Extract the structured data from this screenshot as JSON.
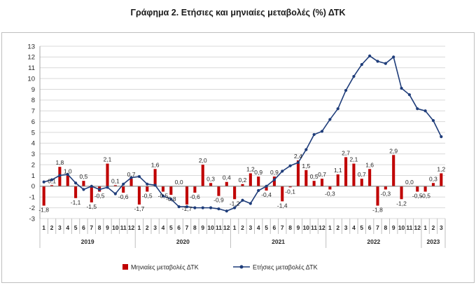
{
  "chart_data": {
    "type": "bar",
    "title": "Γράφημα 2. Ετήσιες και μηνιαίες μεταβολές (%) ΔΤΚ",
    "xlabel": "",
    "ylabel": "",
    "ylim": [
      -3,
      13
    ],
    "yticks": [
      -3,
      -2,
      -1,
      0,
      1,
      2,
      3,
      4,
      5,
      6,
      7,
      8,
      9,
      10,
      11,
      12,
      13
    ],
    "grid": true,
    "legend": "bottom",
    "periods": [
      {
        "year": "2019",
        "months": [
          "1",
          "2",
          "3",
          "4",
          "5",
          "6",
          "7",
          "8",
          "9",
          "10",
          "11",
          "12"
        ]
      },
      {
        "year": "2020",
        "months": [
          "1",
          "2",
          "3",
          "4",
          "5",
          "6",
          "7",
          "8",
          "9",
          "10",
          "11",
          "12"
        ]
      },
      {
        "year": "2021",
        "months": [
          "1",
          "2",
          "3",
          "4",
          "5",
          "6",
          "7",
          "8",
          "9",
          "10",
          "11",
          "12"
        ]
      },
      {
        "year": "2022",
        "months": [
          "1",
          "2",
          "3",
          "4",
          "5",
          "6",
          "7",
          "8",
          "9",
          "10",
          "11",
          "12"
        ]
      },
      {
        "year": "2023",
        "months": [
          "1",
          "2",
          "3"
        ]
      }
    ],
    "series": [
      {
        "name": "Μηνιαίες μεταβολές ΔΤΚ",
        "type": "bar",
        "color": "#C00000",
        "data_labels": true,
        "values": [
          -1.8,
          0.1,
          1.8,
          1.0,
          -1.1,
          0.5,
          -1.5,
          -0.5,
          2.1,
          0.1,
          -0.6,
          0.7,
          -1.7,
          -0.5,
          1.6,
          -0.5,
          -0.8,
          0.0,
          -1.7,
          -0.6,
          2.0,
          0.3,
          -0.9,
          0.4,
          -1.2,
          0.2,
          1.2,
          0.9,
          -0.4,
          0.9,
          -1.4,
          -0.1,
          2.4,
          1.5,
          0.5,
          0.7,
          -0.3,
          1.1,
          2.7,
          2.1,
          0.7,
          1.6,
          -1.8,
          -0.3,
          2.9,
          -1.2,
          0.0,
          -0.5,
          -0.5,
          0.3,
          1.2
        ]
      },
      {
        "name": "Ετήσιες μεταβολές ΔΤΚ",
        "type": "line",
        "color": "#1F3D7A",
        "marker": "circle",
        "values": [
          0.4,
          0.6,
          1.0,
          1.1,
          0.3,
          -0.3,
          0.0,
          -0.3,
          -0.1,
          -0.7,
          0.2,
          0.8,
          0.9,
          0.2,
          0.1,
          -0.9,
          -1.2,
          -1.9,
          -1.9,
          -2.0,
          -2.0,
          -2.0,
          -2.1,
          -2.3,
          -2.0,
          -1.3,
          -1.6,
          -0.4,
          0.0,
          0.6,
          1.4,
          1.9,
          2.2,
          3.4,
          4.8,
          5.1,
          6.2,
          7.2,
          8.9,
          10.2,
          11.3,
          12.1,
          11.6,
          11.4,
          12.0,
          9.1,
          8.5,
          7.2,
          7.0,
          6.1,
          4.6
        ]
      }
    ]
  }
}
